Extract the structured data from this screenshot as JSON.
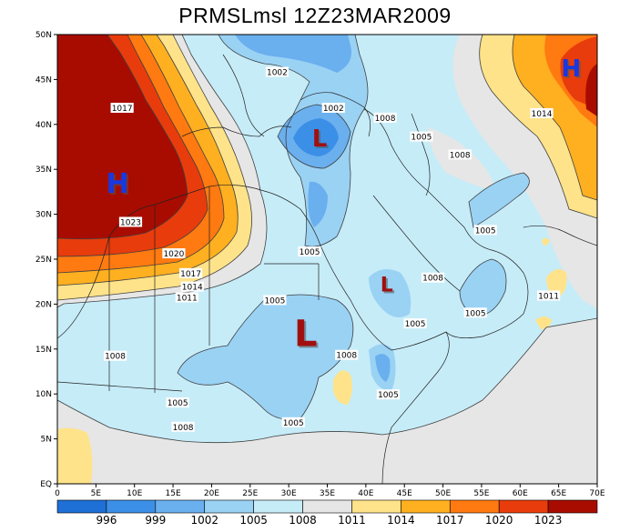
{
  "title": "PRMSLmsl  12Z23MAR2009",
  "colors": {
    "c996": "#1e6fd6",
    "c999": "#3c8fe6",
    "c1002": "#6aafee",
    "c1005": "#9ad2f4",
    "c1008": "#c6ecf8",
    "c1011": "#e6e6e6",
    "c1014": "#ffe38a",
    "c1017": "#ffb020",
    "c1020": "#ff7a10",
    "c1023": "#e83c0c",
    "c1026": "#a80c00",
    "high": "#1838e0",
    "low": "#a01010"
  },
  "axes": {
    "lat_ticks": [
      "EQ",
      "5N",
      "10N",
      "15N",
      "20N",
      "25N",
      "30N",
      "35N",
      "40N",
      "45N",
      "50N"
    ],
    "lon_ticks": [
      "0",
      "5E",
      "10E",
      "15E",
      "20E",
      "25E",
      "30E",
      "35E",
      "40E",
      "45E",
      "50E",
      "55E",
      "60E",
      "65E",
      "70E"
    ]
  },
  "colorbar": {
    "labels": [
      "996",
      "999",
      "1002",
      "1005",
      "1008",
      "1011",
      "1014",
      "1017",
      "1020",
      "1023"
    ]
  },
  "contour_labels": [
    {
      "text": "1002",
      "lon": 28.5,
      "lat": 45.8
    },
    {
      "text": "1017",
      "lon": 8.4,
      "lat": 41.8
    },
    {
      "text": "1002",
      "lon": 35.8,
      "lat": 41.8
    },
    {
      "text": "1008",
      "lon": 42.5,
      "lat": 40.7
    },
    {
      "text": "1005",
      "lon": 47.2,
      "lat": 38.6
    },
    {
      "text": "1008",
      "lon": 52.2,
      "lat": 36.6
    },
    {
      "text": "1014",
      "lon": 62.8,
      "lat": 41.2
    },
    {
      "text": "1023",
      "lon": 9.5,
      "lat": 29.1
    },
    {
      "text": "1005",
      "lon": 32.7,
      "lat": 25.8
    },
    {
      "text": "1005",
      "lon": 55.5,
      "lat": 28.2
    },
    {
      "text": "1020",
      "lon": 15.1,
      "lat": 25.6
    },
    {
      "text": "1017",
      "lon": 17.3,
      "lat": 23.4
    },
    {
      "text": "1014",
      "lon": 17.5,
      "lat": 21.9
    },
    {
      "text": "1011",
      "lon": 16.8,
      "lat": 20.7
    },
    {
      "text": "1008",
      "lon": 48.7,
      "lat": 22.9
    },
    {
      "text": "1011",
      "lon": 63.7,
      "lat": 20.9
    },
    {
      "text": "1005",
      "lon": 28.2,
      "lat": 20.4
    },
    {
      "text": "1005",
      "lon": 46.4,
      "lat": 17.8
    },
    {
      "text": "1005",
      "lon": 54.2,
      "lat": 19.0
    },
    {
      "text": "1008",
      "lon": 7.5,
      "lat": 14.2
    },
    {
      "text": "1008",
      "lon": 37.5,
      "lat": 14.3
    },
    {
      "text": "1005",
      "lon": 15.6,
      "lat": 9.0
    },
    {
      "text": "1005",
      "lon": 42.9,
      "lat": 9.9
    },
    {
      "text": "1008",
      "lon": 16.3,
      "lat": 6.3
    },
    {
      "text": "1005",
      "lon": 30.6,
      "lat": 6.8
    }
  ],
  "pressure_centers": [
    {
      "symbol": "H",
      "type": "high",
      "lon": 7.8,
      "lat": 33.5,
      "size": 30
    },
    {
      "symbol": "H",
      "type": "high",
      "lon": 66.6,
      "lat": 46.3,
      "size": 26
    },
    {
      "symbol": "L",
      "type": "low",
      "lon": 34.0,
      "lat": 38.5,
      "size": 26
    },
    {
      "symbol": "L",
      "type": "low",
      "lon": 42.7,
      "lat": 22.2,
      "size": 22
    },
    {
      "symbol": "L",
      "type": "low",
      "lon": 32.2,
      "lat": 16.8,
      "size": 40
    }
  ]
}
